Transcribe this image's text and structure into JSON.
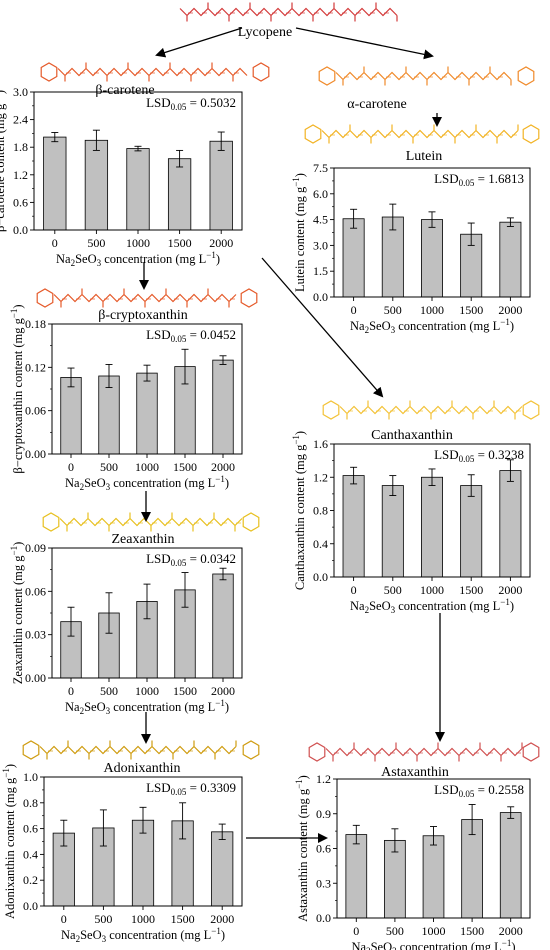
{
  "pathway_nodes": {
    "lycopene": "Lycopene",
    "alpha_carotene": "α-carotene",
    "beta_carotene": "β-carotene",
    "lutein": "Lutein",
    "beta_cryptoxanthin": "β-cryptoxanthin",
    "canthaxanthin": "Canthaxanthin",
    "zeaxanthin": "Zeaxanthin",
    "adonixanthin": "Adonixanthin",
    "astaxanthin": "Astaxanthin"
  },
  "molecule_colors": {
    "lycopene": "#d33a3a",
    "beta_carotene": "#e55a2a",
    "alpha_carotene": "#f08a2a",
    "lutein": "#f2b324",
    "beta_cryptoxanthin": "#e55a2a",
    "canthaxanthin": "#f3c237",
    "zeaxanthin": "#e8c020",
    "adonixanthin": "#cf9c10",
    "astaxanthin": "#d05050"
  },
  "bar_color": "#c0c0c0",
  "xlabel_base": "Na",
  "xlabel_sub": "2",
  "xlabel_mid": "SeO",
  "xlabel_sub2": "3",
  "xlabel_tail": " concentration (mg L",
  "xlabel_sup": "−1",
  "xlabel_close": ")",
  "ylabel_unit": "(mg g",
  "ylabel_sup": "−1",
  "ylabel_close": ")",
  "lsd_prefix": "LSD",
  "lsd_sub": "0.05",
  "chart_data": [
    {
      "id": "beta_carotene",
      "type": "bar",
      "ylabel": "β−carotene content",
      "categories": [
        "0",
        "500",
        "1000",
        "1500",
        "2000"
      ],
      "values": [
        2.02,
        1.95,
        1.77,
        1.55,
        1.93
      ],
      "errors": [
        0.1,
        0.22,
        0.05,
        0.18,
        0.2
      ],
      "ylim": [
        0,
        3.0
      ],
      "yticks": [
        "0.0",
        "0.6",
        "1.2",
        "1.8",
        "2.4",
        "3.0"
      ],
      "lsd": "0.5032"
    },
    {
      "id": "lutein",
      "type": "bar",
      "ylabel": "Lutein content",
      "categories": [
        "0",
        "500",
        "1000",
        "1500",
        "2000"
      ],
      "values": [
        4.55,
        4.65,
        4.5,
        3.65,
        4.35
      ],
      "errors": [
        0.55,
        0.75,
        0.45,
        0.65,
        0.25
      ],
      "ylim": [
        0,
        7.5
      ],
      "yticks": [
        "0.0",
        "1.5",
        "3.0",
        "4.5",
        "6.0",
        "7.5"
      ],
      "lsd": "1.6813"
    },
    {
      "id": "beta_cryptoxanthin",
      "type": "bar",
      "ylabel": "β−cryptoxanthin content",
      "categories": [
        "0",
        "500",
        "1000",
        "1500",
        "2000"
      ],
      "values": [
        0.106,
        0.108,
        0.112,
        0.121,
        0.13
      ],
      "errors": [
        0.013,
        0.016,
        0.011,
        0.024,
        0.006
      ],
      "ylim": [
        0,
        0.18
      ],
      "yticks": [
        "0.00",
        "0.06",
        "0.12",
        "0.18"
      ],
      "lsd": "0.0452"
    },
    {
      "id": "canthaxanthin",
      "type": "bar",
      "ylabel": "Canthaxanthin content",
      "categories": [
        "0",
        "500",
        "1000",
        "1500",
        "2000"
      ],
      "values": [
        1.22,
        1.1,
        1.2,
        1.1,
        1.28
      ],
      "errors": [
        0.1,
        0.12,
        0.1,
        0.13,
        0.13
      ],
      "ylim": [
        0,
        1.6
      ],
      "yticks": [
        "0.0",
        "0.4",
        "0.8",
        "1.2",
        "1.6"
      ],
      "lsd": "0.3238"
    },
    {
      "id": "zeaxanthin",
      "type": "bar",
      "ylabel": "Zeaxanthin content",
      "categories": [
        "0",
        "500",
        "1000",
        "1500",
        "2000"
      ],
      "values": [
        0.039,
        0.045,
        0.053,
        0.061,
        0.072
      ],
      "errors": [
        0.01,
        0.014,
        0.012,
        0.012,
        0.004
      ],
      "ylim": [
        0,
        0.09
      ],
      "yticks": [
        "0.00",
        "0.03",
        "0.06",
        "0.09"
      ],
      "lsd": "0.0342"
    },
    {
      "id": "astaxanthin",
      "type": "bar",
      "ylabel": "Astaxanthin content",
      "categories": [
        "0",
        "500",
        "1000",
        "1500",
        "2000"
      ],
      "values": [
        0.72,
        0.67,
        0.71,
        0.85,
        0.91
      ],
      "errors": [
        0.08,
        0.1,
        0.08,
        0.13,
        0.05
      ],
      "ylim": [
        0,
        1.2
      ],
      "yticks": [
        "0.0",
        "0.3",
        "0.6",
        "0.9",
        "1.2"
      ],
      "lsd": "0.2558"
    },
    {
      "id": "adonixanthin",
      "type": "bar",
      "ylabel": "Adonixanthin content",
      "categories": [
        "0",
        "500",
        "1000",
        "1500",
        "2000"
      ],
      "values": [
        0.565,
        0.605,
        0.665,
        0.66,
        0.575
      ],
      "errors": [
        0.1,
        0.14,
        0.1,
        0.14,
        0.06
      ],
      "ylim": [
        0,
        1.0
      ],
      "yticks": [
        "0.0",
        "0.2",
        "0.4",
        "0.6",
        "0.8",
        "1.0"
      ],
      "lsd": "0.3309"
    }
  ]
}
